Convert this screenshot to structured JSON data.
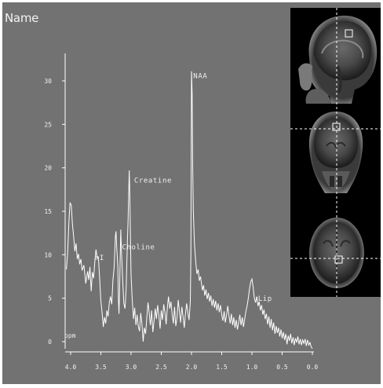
{
  "window": {
    "name_label": "Name"
  },
  "chart_data": {
    "type": "line",
    "title": "",
    "xlabel": "",
    "ylabel": "",
    "x_reversed": true,
    "xlim": [
      4.1,
      0.0
    ],
    "ylim": [
      -1,
      33
    ],
    "x_ticks": [
      "4.0",
      "3.5",
      "3.0",
      "2.5",
      "2.0",
      "1.5",
      "1.0",
      "0.5",
      "0.0"
    ],
    "x_tick_values": [
      4.0,
      3.5,
      3.0,
      2.5,
      2.0,
      1.5,
      1.0,
      0.5,
      0.0
    ],
    "y_ticks": [
      "0",
      "5",
      "10",
      "15",
      "20",
      "25",
      "30"
    ],
    "y_tick_values": [
      0,
      5,
      10,
      15,
      20,
      25,
      30
    ],
    "unit_label": "ppm",
    "annotations": [
      {
        "text": "NAA",
        "x": 1.97,
        "y": 30.3
      },
      {
        "text": "Creatine",
        "x": 2.95,
        "y": 18.3
      },
      {
        "text": "mI",
        "x": 3.6,
        "y": 9.4
      },
      {
        "text": "Choline",
        "x": 3.15,
        "y": 10.6
      },
      {
        "text": "Lip",
        "x": 0.9,
        "y": 4.7
      }
    ],
    "series": [
      {
        "values": [
          [
            4.07,
            8.3
          ],
          [
            4.05,
            10.2
          ],
          [
            4.03,
            13.6
          ],
          [
            4.01,
            16.0
          ],
          [
            3.99,
            15.7
          ],
          [
            3.97,
            13.5
          ],
          [
            3.95,
            12.1
          ],
          [
            3.93,
            10.4
          ],
          [
            3.91,
            11.3
          ],
          [
            3.89,
            9.5
          ],
          [
            3.87,
            10.1
          ],
          [
            3.85,
            8.9
          ],
          [
            3.83,
            9.5
          ],
          [
            3.81,
            8.2
          ],
          [
            3.78,
            8.8
          ],
          [
            3.75,
            6.7
          ],
          [
            3.72,
            8.1
          ],
          [
            3.7,
            7.1
          ],
          [
            3.68,
            8.6
          ],
          [
            3.66,
            5.8
          ],
          [
            3.64,
            8.0
          ],
          [
            3.62,
            7.3
          ],
          [
            3.6,
            9.2
          ],
          [
            3.58,
            10.6
          ],
          [
            3.56,
            9.6
          ],
          [
            3.54,
            9.7
          ],
          [
            3.52,
            7.2
          ],
          [
            3.5,
            4.7
          ],
          [
            3.48,
            3.4
          ],
          [
            3.46,
            1.7
          ],
          [
            3.44,
            2.8
          ],
          [
            3.42,
            2.1
          ],
          [
            3.4,
            3.6
          ],
          [
            3.38,
            2.9
          ],
          [
            3.36,
            4.5
          ],
          [
            3.34,
            5.2
          ],
          [
            3.32,
            4.3
          ],
          [
            3.3,
            7.1
          ],
          [
            3.28,
            8.5
          ],
          [
            3.26,
            12.1
          ],
          [
            3.25,
            12.7
          ],
          [
            3.24,
            11.2
          ],
          [
            3.22,
            8.7
          ],
          [
            3.21,
            5.1
          ],
          [
            3.2,
            3.2
          ],
          [
            3.19,
            6.1
          ],
          [
            3.18,
            9.4
          ],
          [
            3.17,
            12.9
          ],
          [
            3.16,
            10.6
          ],
          [
            3.14,
            7.3
          ],
          [
            3.12,
            4.4
          ],
          [
            3.1,
            3.8
          ],
          [
            3.08,
            6.2
          ],
          [
            3.06,
            11.8
          ],
          [
            3.05,
            14.0
          ],
          [
            3.04,
            16.8
          ],
          [
            3.03,
            19.7
          ],
          [
            3.02,
            16.6
          ],
          [
            3.01,
            11.9
          ],
          [
            3.0,
            7.6
          ],
          [
            2.98,
            4.8
          ],
          [
            2.96,
            2.6
          ],
          [
            2.94,
            3.9
          ],
          [
            2.92,
            1.9
          ],
          [
            2.9,
            3.1
          ],
          [
            2.88,
            1.8
          ],
          [
            2.86,
            1.2
          ],
          [
            2.84,
            3.3
          ],
          [
            2.82,
            2.0
          ],
          [
            2.8,
            0.0
          ],
          [
            2.78,
            1.6
          ],
          [
            2.76,
            0.9
          ],
          [
            2.74,
            2.7
          ],
          [
            2.72,
            4.5
          ],
          [
            2.7,
            3.3
          ],
          [
            2.68,
            1.9
          ],
          [
            2.66,
            3.6
          ],
          [
            2.64,
            1.1
          ],
          [
            2.62,
            2.4
          ],
          [
            2.6,
            3.8
          ],
          [
            2.58,
            2.6
          ],
          [
            2.56,
            4.2
          ],
          [
            2.54,
            3.0
          ],
          [
            2.52,
            1.5
          ],
          [
            2.5,
            3.6
          ],
          [
            2.48,
            2.5
          ],
          [
            2.46,
            4.3
          ],
          [
            2.44,
            3.4
          ],
          [
            2.42,
            2.0
          ],
          [
            2.4,
            3.9
          ],
          [
            2.38,
            5.2
          ],
          [
            2.36,
            3.8
          ],
          [
            2.34,
            4.6
          ],
          [
            2.32,
            3.1
          ],
          [
            2.3,
            2.1
          ],
          [
            2.28,
            4.0
          ],
          [
            2.26,
            1.8
          ],
          [
            2.24,
            2.7
          ],
          [
            2.22,
            4.8
          ],
          [
            2.2,
            3.5
          ],
          [
            2.18,
            2.2
          ],
          [
            2.16,
            4.0
          ],
          [
            2.14,
            2.9
          ],
          [
            2.12,
            1.6
          ],
          [
            2.1,
            3.2
          ],
          [
            2.08,
            4.4
          ],
          [
            2.06,
            3.3
          ],
          [
            2.04,
            2.5
          ],
          [
            2.02,
            4.6
          ],
          [
            2.01,
            10.0
          ],
          [
            2.005,
            21.0
          ],
          [
            2.0,
            31.1
          ],
          [
            1.99,
            28.6
          ],
          [
            1.98,
            20.3
          ],
          [
            1.97,
            15.1
          ],
          [
            1.95,
            11.2
          ],
          [
            1.93,
            9.2
          ],
          [
            1.91,
            7.8
          ],
          [
            1.89,
            8.3
          ],
          [
            1.87,
            7.0
          ],
          [
            1.85,
            7.5
          ],
          [
            1.82,
            5.9
          ],
          [
            1.8,
            6.5
          ],
          [
            1.78,
            5.3
          ],
          [
            1.76,
            6.0
          ],
          [
            1.74,
            4.9
          ],
          [
            1.72,
            5.6
          ],
          [
            1.7,
            4.6
          ],
          [
            1.68,
            5.3
          ],
          [
            1.66,
            4.1
          ],
          [
            1.64,
            4.9
          ],
          [
            1.62,
            3.9
          ],
          [
            1.6,
            4.7
          ],
          [
            1.58,
            3.6
          ],
          [
            1.56,
            4.4
          ],
          [
            1.54,
            3.4
          ],
          [
            1.52,
            4.2
          ],
          [
            1.5,
            3.1
          ],
          [
            1.48,
            2.4
          ],
          [
            1.46,
            3.5
          ],
          [
            1.44,
            2.2
          ],
          [
            1.42,
            3.1
          ],
          [
            1.4,
            4.1
          ],
          [
            1.38,
            3.0
          ],
          [
            1.36,
            2.1
          ],
          [
            1.34,
            3.2
          ],
          [
            1.32,
            1.9
          ],
          [
            1.3,
            2.8
          ],
          [
            1.28,
            1.6
          ],
          [
            1.26,
            2.5
          ],
          [
            1.24,
            1.4
          ],
          [
            1.22,
            2.2
          ],
          [
            1.2,
            3.1
          ],
          [
            1.18,
            1.9
          ],
          [
            1.16,
            2.8
          ],
          [
            1.14,
            1.7
          ],
          [
            1.12,
            2.6
          ],
          [
            1.1,
            3.5
          ],
          [
            1.08,
            4.1
          ],
          [
            1.06,
            5.0
          ],
          [
            1.04,
            6.1
          ],
          [
            1.02,
            6.9
          ],
          [
            1.0,
            7.2
          ],
          [
            0.98,
            6.3
          ],
          [
            0.96,
            5.0
          ],
          [
            0.94,
            4.5
          ],
          [
            0.92,
            5.2
          ],
          [
            0.9,
            4.1
          ],
          [
            0.88,
            4.6
          ],
          [
            0.86,
            3.6
          ],
          [
            0.84,
            4.2
          ],
          [
            0.82,
            3.1
          ],
          [
            0.8,
            3.7
          ],
          [
            0.78,
            2.6
          ],
          [
            0.76,
            3.2
          ],
          [
            0.74,
            2.0
          ],
          [
            0.72,
            2.9
          ],
          [
            0.7,
            1.6
          ],
          [
            0.68,
            2.6
          ],
          [
            0.66,
            1.3
          ],
          [
            0.64,
            2.2
          ],
          [
            0.62,
            0.9
          ],
          [
            0.6,
            1.8
          ],
          [
            0.58,
            1.0
          ],
          [
            0.56,
            1.6
          ],
          [
            0.54,
            0.6
          ],
          [
            0.52,
            1.4
          ],
          [
            0.5,
            0.4
          ],
          [
            0.48,
            1.1
          ],
          [
            0.46,
            0.2
          ],
          [
            0.44,
            0.9
          ],
          [
            0.42,
            -0.3
          ],
          [
            0.4,
            0.7
          ],
          [
            0.38,
            0.1
          ],
          [
            0.36,
            0.9
          ],
          [
            0.34,
            -0.2
          ],
          [
            0.32,
            0.5
          ],
          [
            0.3,
            -0.4
          ],
          [
            0.28,
            0.4
          ],
          [
            0.26,
            -0.1
          ],
          [
            0.24,
            0.6
          ],
          [
            0.22,
            -0.3
          ],
          [
            0.2,
            0.3
          ],
          [
            0.18,
            -0.4
          ],
          [
            0.16,
            0.2
          ],
          [
            0.14,
            -0.2
          ],
          [
            0.12,
            0.3
          ],
          [
            0.1,
            -0.5
          ],
          [
            0.08,
            0.2
          ],
          [
            0.06,
            -0.4
          ],
          [
            0.04,
            -0.1
          ],
          [
            0.02,
            -0.6
          ],
          [
            0.0,
            -0.8
          ]
        ]
      }
    ]
  },
  "mri": {
    "views": [
      {
        "orientation": "sagittal"
      },
      {
        "orientation": "coronal"
      },
      {
        "orientation": "axial"
      }
    ]
  },
  "colors": {
    "panel": "#727272",
    "trace": "#ffffff",
    "text": "#f0f0f0",
    "frame": "#ffffff",
    "mri_bg": "#000000",
    "crosshair": "#ffffff"
  }
}
